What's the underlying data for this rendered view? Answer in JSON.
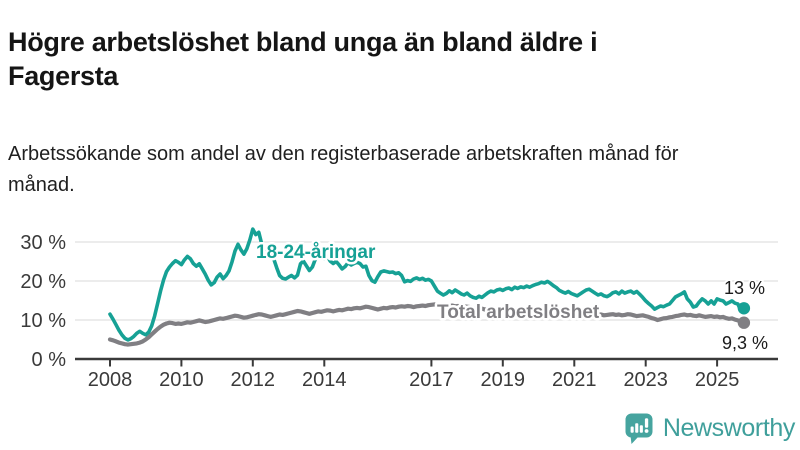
{
  "header": {
    "title": "Högre arbetslöshet bland unga än bland äldre i Fagersta",
    "subtitle": "Arbetssökande som andel av den registerbaserade arbetskraften månad för månad."
  },
  "chart_data": {
    "type": "line",
    "title": "Högre arbetslöshet bland unga än bland äldre i Fagersta",
    "x_unit": "month",
    "x_start": "2008-01",
    "x_end": "2025-10",
    "x_tick_labels": [
      "2008",
      "2010",
      "2012",
      "2014",
      "2017",
      "2019",
      "2021",
      "2023",
      "2025"
    ],
    "y_tick_labels": [
      "0 %",
      "10 %",
      "20 %",
      "30 %"
    ],
    "ylim": [
      0,
      35
    ],
    "grid": "horizontal",
    "legend": "inline-labels",
    "series": [
      {
        "name": "18-24-åringar",
        "color": "#16a195",
        "end_label": "13 %",
        "end_value": 13.0,
        "values": [
          11.5,
          10.2,
          8.8,
          7.4,
          6.2,
          5.3,
          4.9,
          5.2,
          5.8,
          6.6,
          7.1,
          6.6,
          6.2,
          6.9,
          8.5,
          11.0,
          14.2,
          17.5,
          20.3,
          22.4,
          23.6,
          24.5,
          25.2,
          24.8,
          24.2,
          25.4,
          26.3,
          25.7,
          24.5,
          23.8,
          24.4,
          23.1,
          21.8,
          20.2,
          19.0,
          19.6,
          21.0,
          21.8,
          20.6,
          21.4,
          22.6,
          24.9,
          27.7,
          29.4,
          28.0,
          26.9,
          28.3,
          30.6,
          33.3,
          31.9,
          32.5,
          29.4,
          27.6,
          26.3,
          26.5,
          25.7,
          23.4,
          21.4,
          20.7,
          20.5,
          21.0,
          21.4,
          20.8,
          21.5,
          24.4,
          25.1,
          23.9,
          22.7,
          23.6,
          25.6,
          26.8,
          26.3,
          25.7,
          26.4,
          25.1,
          24.5,
          25.0,
          24.1,
          23.1,
          23.7,
          24.7,
          24.1,
          24.5,
          24.8,
          24.5,
          23.6,
          23.8,
          21.4,
          20.1,
          19.7,
          21.1,
          22.3,
          22.6,
          22.4,
          22.2,
          22.3,
          21.9,
          22.1,
          21.4,
          19.8,
          20.1,
          19.9,
          20.5,
          20.8,
          20.4,
          20.7,
          20.2,
          20.4,
          20.0,
          18.7,
          17.4,
          16.9,
          16.4,
          16.8,
          17.5,
          17.0,
          17.7,
          17.2,
          16.7,
          16.4,
          16.9,
          16.2,
          15.8,
          15.6,
          16.1,
          15.8,
          16.4,
          17.0,
          17.4,
          17.2,
          17.7,
          17.9,
          17.6,
          18.0,
          18.2,
          17.8,
          18.4,
          18.1,
          18.5,
          18.3,
          18.7,
          18.4,
          18.8,
          19.1,
          19.3,
          19.7,
          19.5,
          19.9,
          19.4,
          18.8,
          18.3,
          17.6,
          17.2,
          16.9,
          17.3,
          16.8,
          16.5,
          16.2,
          16.7,
          17.2,
          17.7,
          17.9,
          17.4,
          16.9,
          16.4,
          16.7,
          16.2,
          16.0,
          16.4,
          17.0,
          17.2,
          16.7,
          17.4,
          16.9,
          17.2,
          17.4,
          16.9,
          17.3,
          16.6,
          15.8,
          14.9,
          14.2,
          13.6,
          12.8,
          13.2,
          13.6,
          13.4,
          13.8,
          14.1,
          15.0,
          15.9,
          16.3,
          16.7,
          17.2,
          15.4,
          14.6,
          13.3,
          13.6,
          14.6,
          15.4,
          14.9,
          14.1,
          14.9,
          14.1,
          15.4,
          15.1,
          14.9,
          14.1,
          14.5,
          14.9,
          14.3,
          14.1,
          12.3,
          13.0
        ]
      },
      {
        "name": "Total arbetslöshet",
        "color": "#807f83",
        "end_label": "9,3 %",
        "end_value": 9.3,
        "values": [
          5.0,
          4.8,
          4.5,
          4.2,
          4.0,
          3.8,
          3.7,
          3.8,
          3.9,
          4.0,
          4.2,
          4.5,
          5.0,
          5.6,
          6.3,
          7.0,
          7.7,
          8.3,
          8.8,
          9.1,
          9.3,
          9.2,
          9.0,
          9.1,
          9.0,
          9.2,
          9.4,
          9.3,
          9.5,
          9.7,
          9.9,
          9.7,
          9.5,
          9.6,
          9.8,
          10.0,
          10.2,
          10.4,
          10.3,
          10.5,
          10.7,
          10.9,
          11.1,
          11.0,
          10.8,
          10.6,
          10.7,
          10.9,
          11.1,
          11.3,
          11.5,
          11.4,
          11.2,
          11.0,
          10.8,
          11.0,
          11.2,
          11.4,
          11.3,
          11.5,
          11.7,
          11.9,
          12.1,
          12.3,
          12.2,
          12.0,
          11.8,
          11.6,
          11.8,
          12.0,
          12.2,
          12.1,
          12.3,
          12.5,
          12.4,
          12.2,
          12.4,
          12.6,
          12.5,
          12.7,
          12.9,
          12.8,
          13.0,
          13.1,
          13.0,
          13.2,
          13.4,
          13.3,
          13.1,
          12.9,
          12.7,
          12.9,
          13.1,
          13.0,
          13.2,
          13.3,
          13.2,
          13.4,
          13.5,
          13.4,
          13.6,
          13.5,
          13.3,
          13.5,
          13.6,
          13.7,
          13.6,
          13.8,
          13.9,
          14.0,
          13.8,
          13.9,
          13.7,
          13.8,
          13.6,
          13.7,
          13.5,
          13.6,
          13.4,
          13.5,
          13.4,
          13.3,
          13.1,
          13.0,
          12.8,
          12.9,
          12.7,
          12.8,
          12.6,
          12.7,
          12.5,
          12.6,
          12.5,
          12.4,
          12.6,
          12.5,
          12.3,
          12.4,
          12.2,
          12.3,
          12.1,
          12.2,
          12.0,
          12.1,
          12.3,
          12.5,
          12.8,
          13.0,
          13.2,
          13.1,
          12.9,
          12.7,
          12.5,
          12.4,
          12.2,
          12.0,
          12.1,
          12.2,
          12.0,
          11.9,
          11.7,
          11.8,
          11.6,
          11.5,
          11.3,
          11.4,
          11.2,
          11.3,
          11.4,
          11.5,
          11.3,
          11.4,
          11.2,
          11.3,
          11.5,
          11.4,
          11.2,
          11.0,
          11.1,
          11.2,
          11.0,
          10.8,
          10.5,
          10.3,
          10.0,
          10.2,
          10.4,
          10.5,
          10.7,
          10.8,
          11.0,
          11.1,
          11.3,
          11.4,
          11.2,
          11.3,
          11.1,
          11.0,
          11.2,
          11.0,
          10.8,
          10.9,
          11.0,
          10.8,
          10.9,
          10.7,
          10.8,
          10.5,
          10.3,
          10.4,
          10.1,
          9.9,
          9.6,
          9.3
        ]
      }
    ]
  },
  "footer": {
    "brand": "Newsworthy",
    "brand_color": "#3f9f9b",
    "logo_icon": "bar-chart-speech-bubble",
    "logo_color": "#46a49f"
  }
}
